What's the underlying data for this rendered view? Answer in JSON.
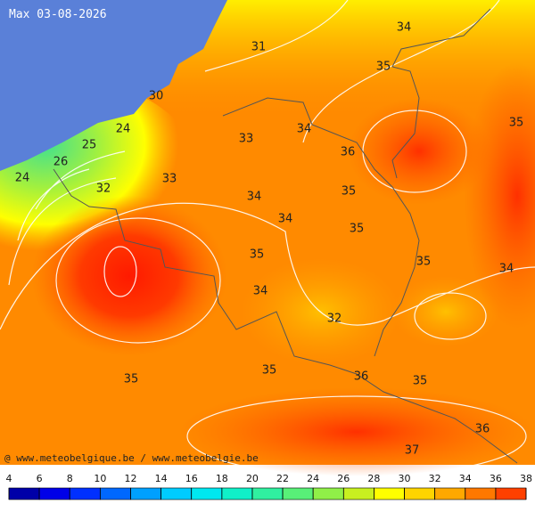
{
  "header": {
    "title": "Max 03-08-2026"
  },
  "credit": "@ www.meteobelgique.be / www.meteobelgie.be",
  "labels": [
    31,
    34,
    35,
    30,
    24,
    34,
    35,
    25,
    33,
    36,
    26,
    24,
    33,
    32,
    34,
    35,
    34,
    35,
    35,
    35,
    34,
    34,
    32,
    35,
    36,
    35,
    35,
    36,
    37
  ],
  "legend": {
    "ticks": [
      4,
      6,
      8,
      10,
      12,
      14,
      16,
      18,
      20,
      22,
      24,
      26,
      28,
      30,
      32,
      34,
      36,
      38
    ],
    "colors": [
      "#0000a8",
      "#0000e8",
      "#0030ff",
      "#0068ff",
      "#00a0ff",
      "#00ccff",
      "#00e8f0",
      "#10f0c8",
      "#30f0a0",
      "#58f078",
      "#90f048",
      "#c8f020",
      "#ffff00",
      "#ffd400",
      "#ffa800",
      "#ff7800",
      "#ff4000"
    ]
  }
}
